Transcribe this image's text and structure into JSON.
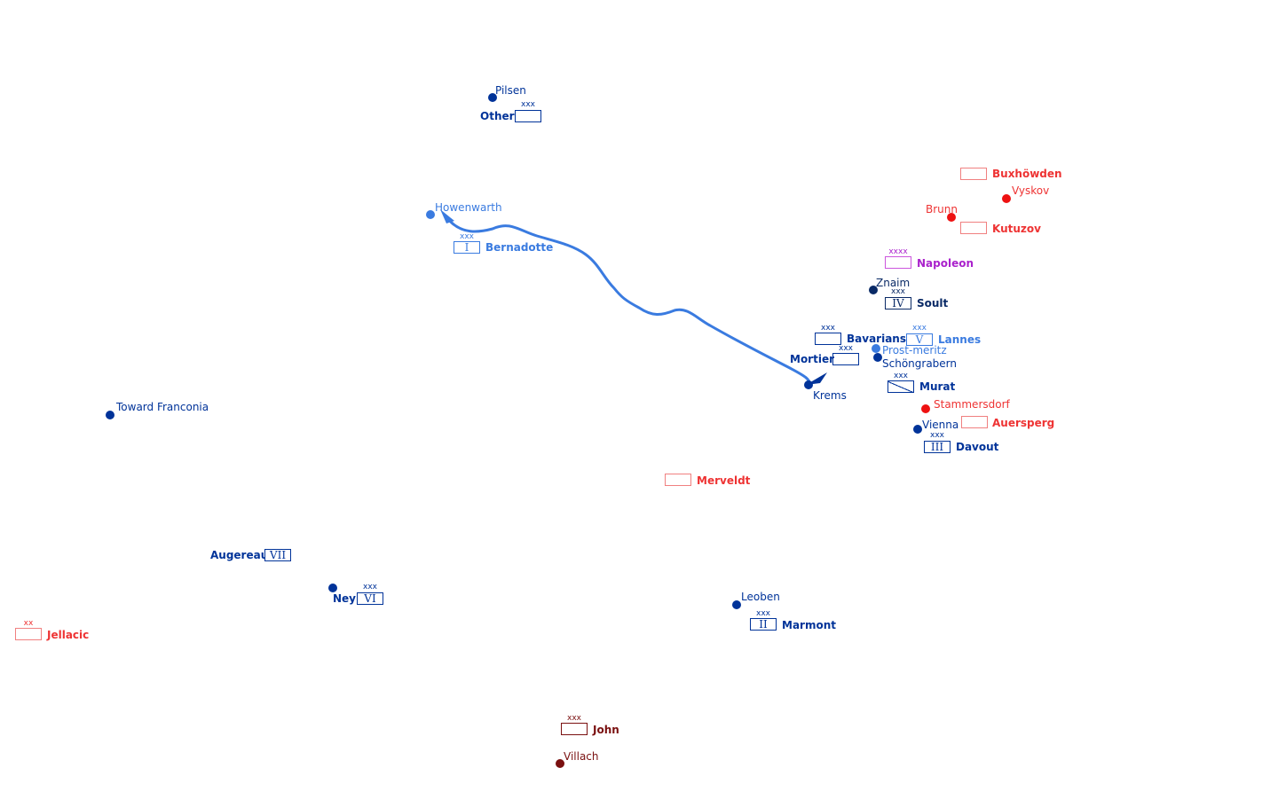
{
  "colors": {
    "french": "#003399",
    "french_light": "#3a7be0",
    "french_dark": "#0a2a66",
    "austrian": "#ee3333",
    "austrian_dark": "#7a1010",
    "napoleon": "#aa22cc"
  },
  "places": {
    "pilsen": "Pilsen",
    "howenwarth": "Howenwarth",
    "vyskov": "Vyskov",
    "brunn": "Brunn",
    "znaim": "Znaim",
    "prostmeritz": "Prost-meritz",
    "schongrabern": "Schöngrabern",
    "krems": "Krems",
    "stammersdorf": "Stammersdorf",
    "vienna": "Vienna",
    "franconia": "Toward Franconia",
    "leoben": "Leoben",
    "villach": "Villach"
  },
  "units": {
    "other": {
      "name": "Other",
      "echelon": "xxx",
      "number": ""
    },
    "bernadotte": {
      "name": "Bernadotte",
      "echelon": "xxx",
      "number": "I"
    },
    "buxhowden": {
      "name": "Buxhöwden",
      "echelon": "",
      "number": ""
    },
    "kutuzov": {
      "name": "Kutuzov",
      "echelon": "",
      "number": ""
    },
    "napoleon": {
      "name": "Napoleon",
      "echelon": "xxxx",
      "number": ""
    },
    "soult": {
      "name": "Soult",
      "echelon": "xxx",
      "number": "IV"
    },
    "bavarians": {
      "name": "Bavarians",
      "echelon": "xxx",
      "number": ""
    },
    "lannes": {
      "name": "Lannes",
      "echelon": "xxx",
      "number": "V"
    },
    "mortier": {
      "name": "Mortier",
      "echelon": "xxx",
      "number": ""
    },
    "murat": {
      "name": "Murat",
      "echelon": "xxx",
      "number": ""
    },
    "auersperg": {
      "name": "Auersperg",
      "echelon": "",
      "number": ""
    },
    "davout": {
      "name": "Davout",
      "echelon": "xxx",
      "number": "III"
    },
    "merveldt": {
      "name": "Merveldt",
      "echelon": "",
      "number": ""
    },
    "augereau": {
      "name": "Augereau",
      "echelon": "",
      "number": "VII"
    },
    "ney": {
      "name": "Ney",
      "echelon": "xxx",
      "number": "VI"
    },
    "jellacic": {
      "name": "Jellacic",
      "echelon": "xx",
      "number": ""
    },
    "marmont": {
      "name": "Marmont",
      "echelon": "xxx",
      "number": "II"
    },
    "john": {
      "name": "John",
      "echelon": "xxx",
      "number": ""
    }
  }
}
